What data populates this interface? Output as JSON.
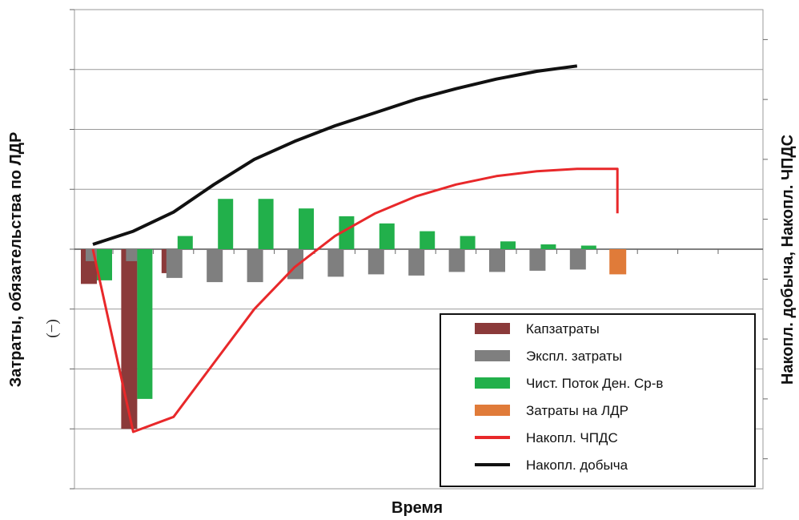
{
  "chart_data": {
    "type": "bar",
    "xlabel": "Время",
    "ylabel_left": "Затраты, обязательства по ЛДР",
    "ylabel_right": "Накопл. добыча, Накопл. ЧПДС",
    "negative_marker": "(−)",
    "grid": true,
    "legend_position": "bottom-right",
    "ylim_left": [
      -4,
      4
    ],
    "ylim_right": [
      -4,
      4
    ],
    "x": [
      1,
      2,
      3,
      4,
      5,
      6,
      7,
      8,
      9,
      10,
      11,
      12,
      13,
      14,
      15,
      16
    ],
    "series": [
      {
        "name": "Капзатраты",
        "kind": "bar",
        "color": "#8b3a3a",
        "values": [
          -0.58,
          -3.0,
          -0.4,
          null,
          null,
          null,
          null,
          null,
          null,
          null,
          null,
          null,
          null,
          null,
          null,
          null
        ]
      },
      {
        "name": "Экспл. затраты",
        "kind": "bar",
        "color": "#7f7f7f",
        "values": [
          -0.2,
          -0.2,
          -0.48,
          -0.55,
          -0.55,
          -0.5,
          -0.46,
          -0.42,
          -0.44,
          -0.38,
          -0.38,
          -0.36,
          -0.34,
          null,
          null,
          null
        ]
      },
      {
        "name": "Чист. Поток  Ден. Ср-в",
        "kind": "bar",
        "color": "#22b04b",
        "values": [
          -0.52,
          -2.5,
          0.22,
          0.84,
          0.84,
          0.68,
          0.55,
          0.43,
          0.3,
          0.22,
          0.13,
          0.08,
          0.06,
          null,
          null,
          null
        ]
      },
      {
        "name": "Затраты на  ЛДР",
        "kind": "bar",
        "color": "#e07b39",
        "values": [
          null,
          null,
          null,
          null,
          null,
          null,
          null,
          null,
          null,
          null,
          null,
          null,
          null,
          -0.42,
          null,
          null
        ]
      },
      {
        "name": "Накопл. ЧПДС",
        "kind": "line",
        "color": "#e8282a",
        "values": [
          0,
          -3.05,
          -2.8,
          -1.9,
          -1.0,
          -0.3,
          0.22,
          0.6,
          0.88,
          1.08,
          1.22,
          1.3,
          1.34,
          1.34,
          null,
          null
        ],
        "final_drop": 0.6
      },
      {
        "name": "Накопл. добыча",
        "kind": "line",
        "color": "#111111",
        "values": [
          0.08,
          0.3,
          0.62,
          1.08,
          1.5,
          1.8,
          2.06,
          2.28,
          2.5,
          2.68,
          2.84,
          2.97,
          3.06,
          null,
          null,
          null
        ]
      }
    ]
  }
}
